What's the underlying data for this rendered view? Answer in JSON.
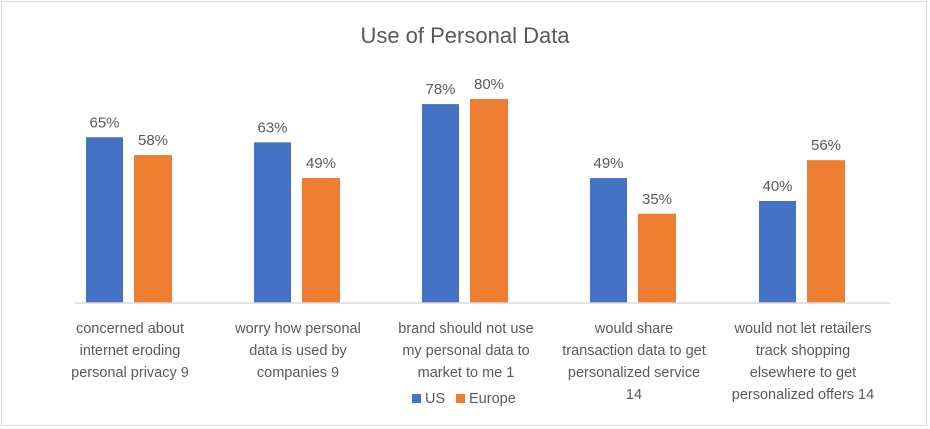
{
  "chart_data": {
    "type": "bar",
    "title": "Use of Personal Data",
    "categories": [
      [
        "concerned about",
        "internet eroding",
        "personal privacy 9"
      ],
      [
        "worry how personal",
        "data is used by",
        "companies 9"
      ],
      [
        "brand should not use",
        "my personal data to",
        "market to me 1"
      ],
      [
        "would share",
        "transaction data to get",
        "personalized service",
        "14"
      ],
      [
        "would not let retailers",
        "track shopping",
        "elsewhere to get",
        "personalized offers 14"
      ]
    ],
    "series": [
      {
        "name": "US",
        "color": "#4472C4",
        "values": [
          65,
          63,
          78,
          49,
          40
        ]
      },
      {
        "name": "Europe",
        "color": "#ED7D31",
        "values": [
          58,
          49,
          80,
          35,
          56
        ]
      }
    ],
    "value_format": "%",
    "ylim": [
      0,
      80
    ],
    "grid": false,
    "legend": "bottom"
  }
}
